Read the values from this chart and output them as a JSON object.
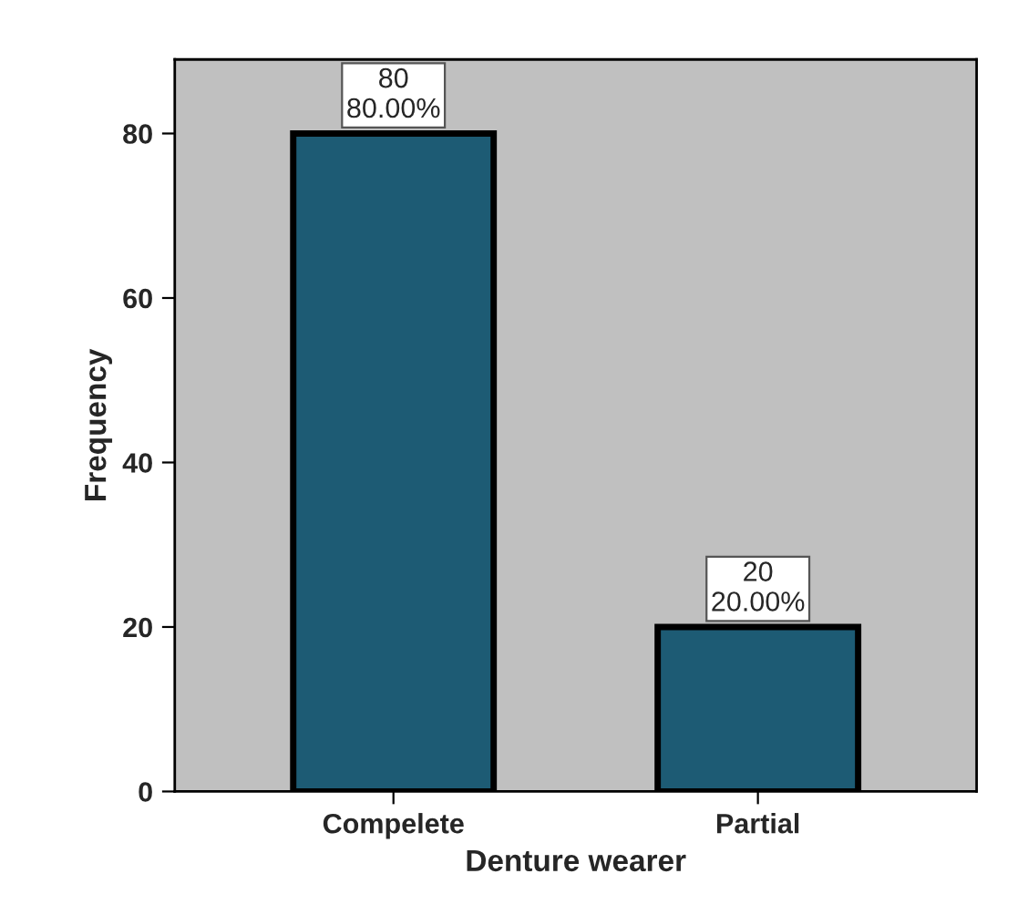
{
  "chart_data": {
    "type": "bar",
    "xlabel": "Denture wearer",
    "ylabel": "Frequency",
    "categories": [
      "Compelete",
      "Partial"
    ],
    "values": [
      80,
      20
    ],
    "color": "#1d5b74",
    "value_labels": [
      "80\n80.00%",
      "20\n20.00%"
    ],
    "ylim": [
      0,
      89
    ],
    "yticks": [
      0,
      20,
      40,
      60,
      80
    ],
    "grid": false
  }
}
